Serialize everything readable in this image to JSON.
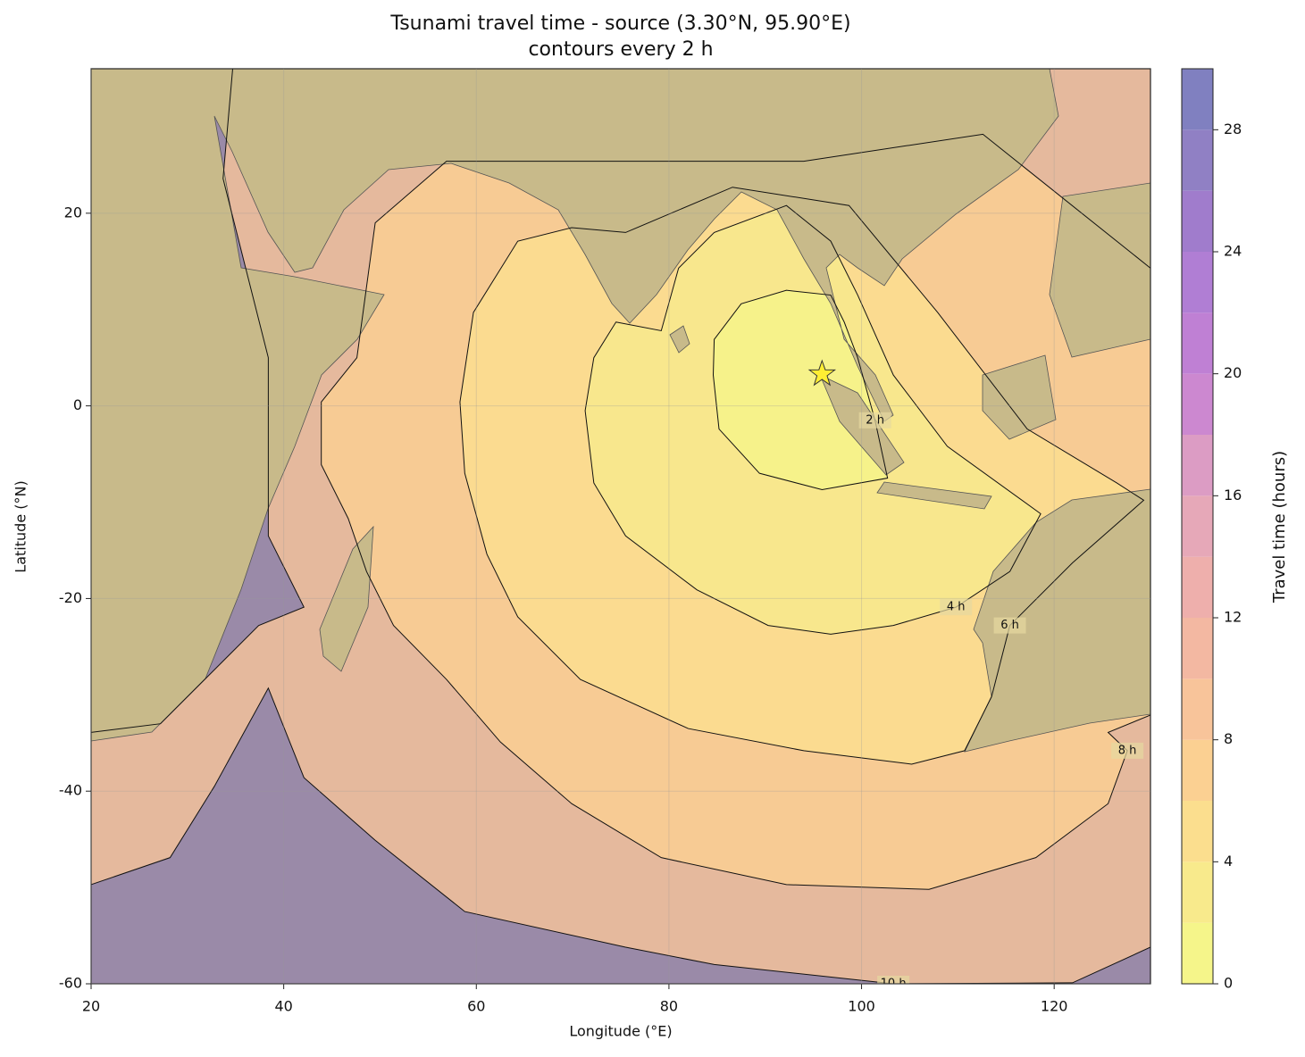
{
  "chart_data": {
    "type": "contour-map",
    "title": "Tsunami travel time - source (3.30°N, 95.90°E)",
    "subtitle": "contours every 2 h",
    "x_label": "Longitude (°E)",
    "y_label": "Latitude (°N)",
    "xlim": [
      20,
      130
    ],
    "xticks": [
      20,
      40,
      60,
      80,
      100,
      120
    ],
    "ylim": [
      -60,
      35
    ],
    "yticks": [
      -60,
      -40,
      -20,
      0,
      20
    ],
    "grid": true,
    "source": {
      "lon": 95.9,
      "lat": 3.3,
      "color": "#ffee33"
    },
    "contours": [
      {
        "level": 10,
        "label": "10 h",
        "lons": [
          20,
          27.2,
          37.4,
          42.1,
          38.4,
          38.4,
          33.7,
          34.7,
          130,
          130,
          121.9,
          103.3,
          84.7,
          75.5,
          58.8,
          49.5,
          42.1,
          38.4,
          32.8,
          28.2,
          20
        ],
        "lats": [
          -33.9,
          -33.0,
          -22.8,
          -20.9,
          -13.5,
          5.0,
          23.6,
          35,
          35,
          -56.2,
          -59.9,
          -60,
          -58.0,
          -56.2,
          -52.5,
          -45.1,
          -38.6,
          -29.3,
          -39.5,
          -46.9,
          -49.7
        ]
      },
      {
        "level": 8,
        "label": "8 h",
        "lons": [
          43.9,
          43.9,
          46.7,
          48.6,
          51.4,
          56.9,
          62.5,
          69.9,
          79.2,
          92.2,
          107.0,
          118.1,
          125.6,
          127.6,
          125.6,
          130,
          130,
          130,
          112.6,
          94.0,
          75.5,
          56.9,
          49.5,
          47.6
        ],
        "lats": [
          0.4,
          -6.1,
          -11.7,
          -17.2,
          -22.8,
          -28.4,
          -34.9,
          -41.3,
          -46.9,
          -49.7,
          -50.2,
          -46.9,
          -41.3,
          -35.8,
          -33.9,
          -32.1,
          -9.8,
          14.3,
          28.2,
          25.4,
          25.4,
          25.4,
          19.0,
          5.0
        ]
      },
      {
        "level": 6,
        "label": "6 h",
        "lons": [
          58.3,
          59.7,
          64.3,
          69.9,
          75.5,
          86.6,
          98.7,
          107.9,
          117.2,
          126.5,
          129.3,
          121.9,
          115.4,
          113.5,
          110.7,
          105.2,
          94.0,
          82.0,
          70.8,
          64.3,
          61.1,
          58.8
        ],
        "lats": [
          0.4,
          9.7,
          17.1,
          18.5,
          18.0,
          22.7,
          20.8,
          9.7,
          -2.4,
          -8.0,
          -9.8,
          -16.3,
          -22.8,
          -30.2,
          -35.8,
          -37.2,
          -35.8,
          -33.5,
          -28.4,
          -21.9,
          -15.4,
          -7.0
        ]
      },
      {
        "level": 4,
        "label": "4 h",
        "lons": [
          74.5,
          79.2,
          81.0,
          84.7,
          92.2,
          96.8,
          99.6,
          103.3,
          108.9,
          118.6,
          115.4,
          109.8,
          103.3,
          96.8,
          90.3,
          82.9,
          75.5,
          72.2,
          71.3,
          72.2
        ],
        "lats": [
          8.7,
          7.8,
          14.3,
          18.0,
          20.8,
          17.1,
          11.5,
          3.2,
          -4.2,
          -11.2,
          -17.2,
          -20.9,
          -22.8,
          -23.7,
          -22.8,
          -19.1,
          -13.5,
          -8.0,
          -0.5,
          5.0
        ]
      },
      {
        "level": 2,
        "label": "2 h",
        "lons": [
          84.7,
          87.5,
          92.2,
          96.8,
          98.2,
          99.6,
          101.4,
          102.7,
          95.9,
          89.4,
          85.2,
          84.6
        ],
        "lats": [
          6.9,
          10.6,
          12.0,
          11.5,
          8.7,
          5.0,
          -1.5,
          -7.5,
          -8.7,
          -7.0,
          -2.4,
          3.2
        ]
      }
    ],
    "colorbar": {
      "label": "Travel time (hours)",
      "lim": [
        0,
        30
      ],
      "step": 2,
      "ticks": [
        0,
        4,
        8,
        12,
        16,
        20,
        24,
        28
      ],
      "colors": [
        "#f5f58a",
        "#f8ea8c",
        "#fbde8e",
        "#fbd092",
        "#f8c49a",
        "#f3b8a2",
        "#eeafac",
        "#e6a8b8",
        "#dc9cc4",
        "#cc88d0",
        "#bf80d4",
        "#b07ed4",
        "#a07ccc",
        "#9080c4",
        "#8080c0"
      ]
    }
  }
}
